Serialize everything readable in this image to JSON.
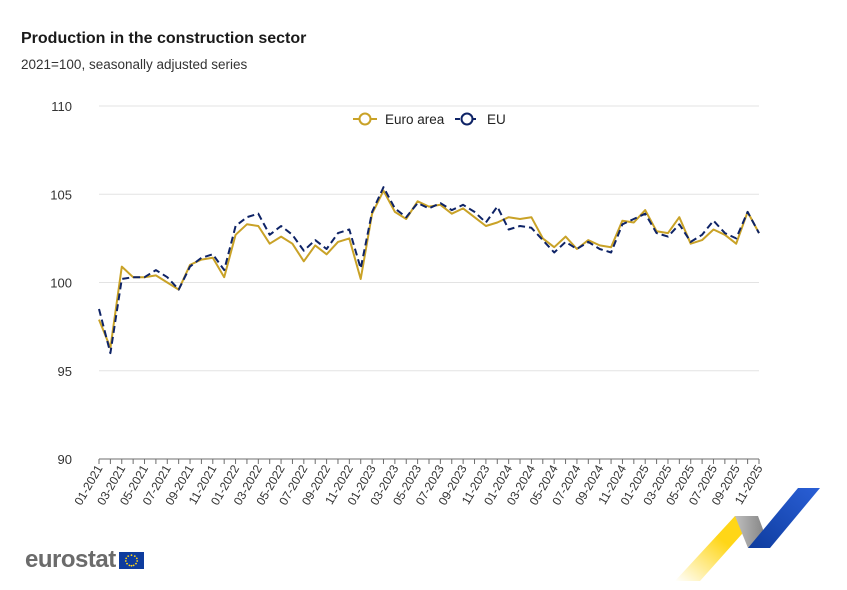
{
  "title": "Production in the construction sector",
  "subtitle": "2021=100, seasonally adjusted series",
  "logo_text": "eurostat",
  "colors": {
    "euro_area": "#c9a227",
    "eu": "#0e2366",
    "grid": "#e3e3e3",
    "axis": "#6d6d6d"
  },
  "chart_data": {
    "type": "line",
    "title": "Production in the construction sector",
    "subtitle": "2021=100, seasonally adjusted series",
    "xlabel": "",
    "ylabel": "",
    "ylim": [
      90,
      110
    ],
    "yticks": [
      90,
      95,
      100,
      105,
      110
    ],
    "legend_position": "top-center",
    "x_start": "01-2021",
    "x_end": "11-2025",
    "x_labels": [
      "01-2021",
      "03-2021",
      "05-2021",
      "07-2021",
      "09-2021",
      "11-2021",
      "01-2022",
      "03-2022",
      "05-2022",
      "07-2022",
      "09-2022",
      "11-2022",
      "01-2023",
      "03-2023",
      "05-2023",
      "07-2023",
      "09-2023",
      "11-2023",
      "01-2024",
      "03-2024",
      "05-2024",
      "07-2024",
      "09-2024",
      "11-2024",
      "01-2025",
      "03-2025",
      "05-2025",
      "07-2025",
      "09-2025",
      "11-2025"
    ],
    "series": [
      {
        "name": "Euro area",
        "style": "solid",
        "values": [
          97.9,
          96.3,
          100.9,
          100.3,
          100.3,
          100.4,
          100.0,
          99.6,
          101.0,
          101.3,
          101.4,
          100.3,
          102.7,
          103.3,
          103.2,
          102.2,
          102.6,
          102.2,
          101.2,
          102.1,
          101.6,
          102.3,
          102.5,
          100.2,
          103.9,
          105.2,
          104.0,
          103.6,
          104.6,
          104.3,
          104.4,
          103.9,
          104.2,
          103.7,
          103.2,
          103.4,
          103.7,
          103.6,
          103.7,
          102.5,
          102.0,
          102.6,
          101.9,
          102.4,
          102.1,
          102.0,
          103.5,
          103.4,
          104.1,
          102.9,
          102.8,
          103.7,
          102.2,
          102.4,
          103.0,
          102.7,
          102.2,
          104.0,
          102.8
        ]
      },
      {
        "name": "EU",
        "style": "dashed",
        "values": [
          98.5,
          96.0,
          100.2,
          100.3,
          100.3,
          100.7,
          100.3,
          99.6,
          100.9,
          101.4,
          101.6,
          100.7,
          103.2,
          103.7,
          103.9,
          102.7,
          103.2,
          102.7,
          101.8,
          102.4,
          101.9,
          102.8,
          103.0,
          100.8,
          104.0,
          105.4,
          104.2,
          103.7,
          104.5,
          104.2,
          104.5,
          104.1,
          104.4,
          104.0,
          103.4,
          104.3,
          103.0,
          103.2,
          103.1,
          102.4,
          101.7,
          102.3,
          101.9,
          102.3,
          101.9,
          101.7,
          103.3,
          103.6,
          103.9,
          102.8,
          102.6,
          103.3,
          102.3,
          102.7,
          103.5,
          102.8,
          102.5,
          104.0,
          102.8
        ]
      }
    ]
  }
}
